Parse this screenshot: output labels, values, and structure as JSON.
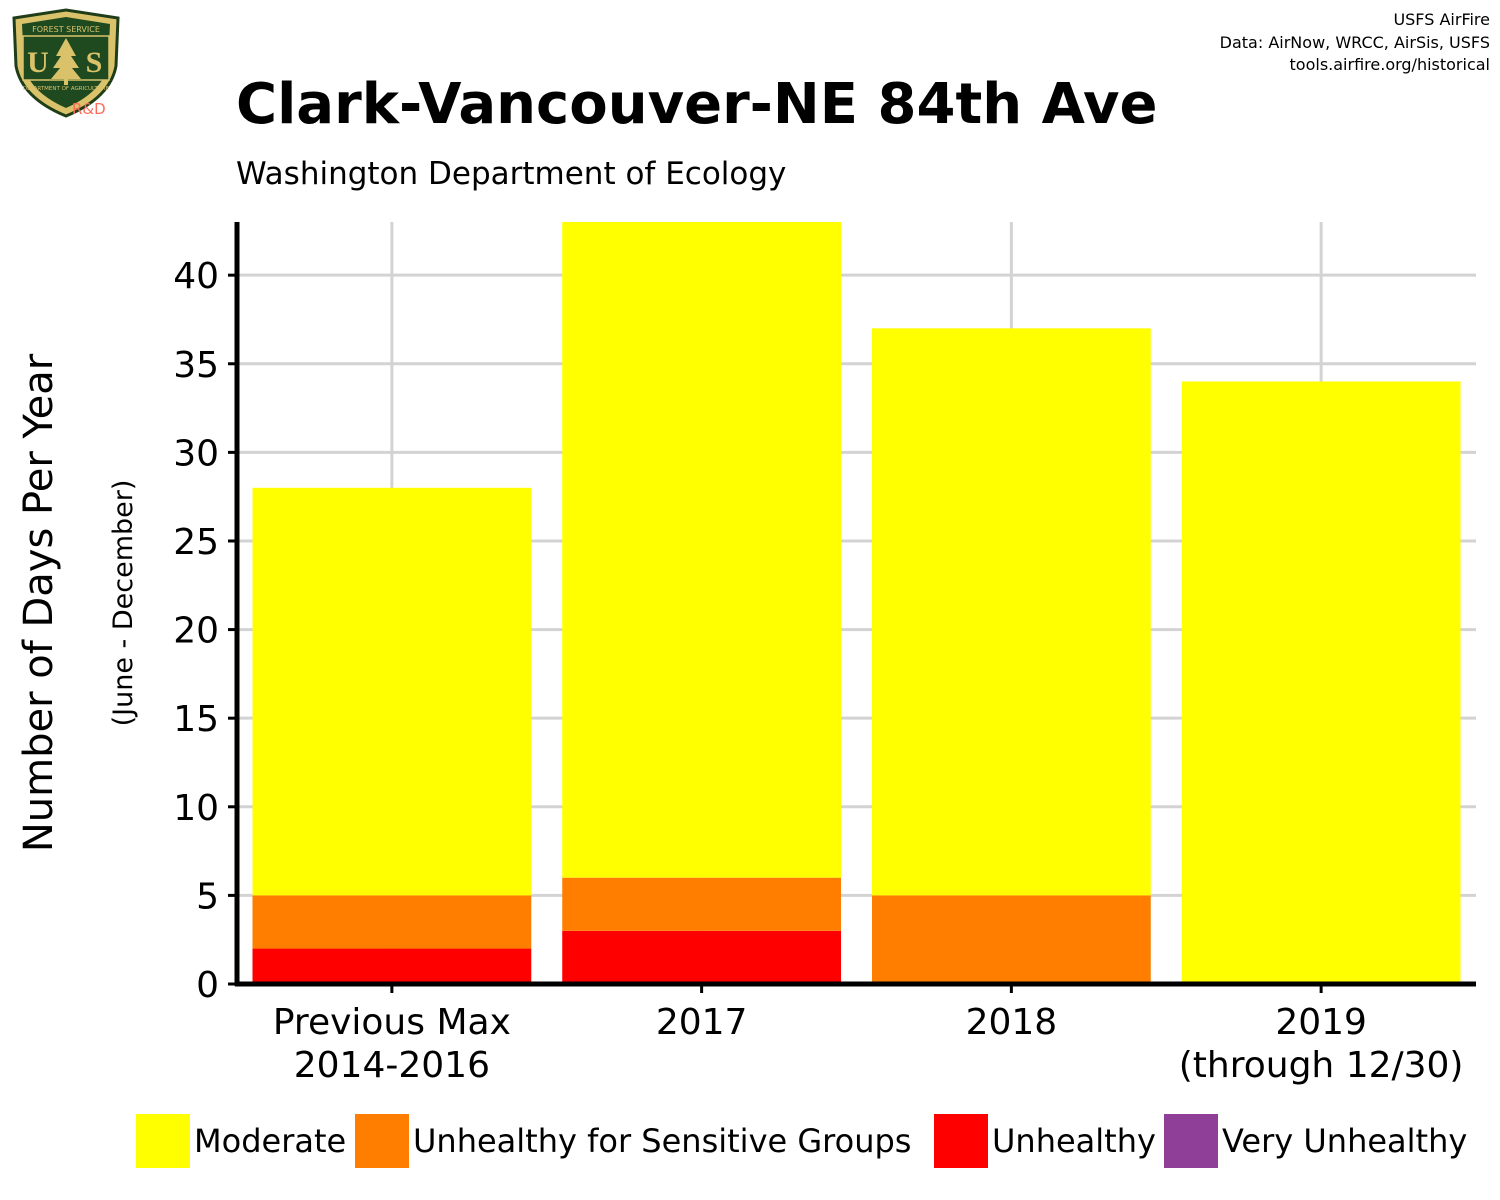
{
  "logo": {
    "top_text": "FOREST SERVICE",
    "letters": "US",
    "bottom_text": "DEPARTMENT OF AGRICULTURE",
    "tag": "R&D"
  },
  "credits": [
    "USFS AirFire",
    "Data: AirNow, WRCC, AirSis, USFS",
    "tools.airfire.org/historical"
  ],
  "colors": {
    "moderate": "#ffff00",
    "usg": "#ff7e00",
    "unhealthy": "#ff0000",
    "very_unhealthy": "#8f3f97",
    "grid": "#d3d3d3"
  },
  "chart_data": {
    "type": "bar",
    "stacked": true,
    "title": "Clark-Vancouver-NE 84th Ave",
    "subtitle": "Washington Department of Ecology",
    "ylabel": "Number of Days Per Year",
    "ylabel_sub": "(June - December)",
    "xlabel": "",
    "ylim": [
      0,
      43
    ],
    "yticks": [
      0,
      5,
      10,
      15,
      20,
      25,
      30,
      35,
      40
    ],
    "grid": true,
    "legend_position": "bottom",
    "categories": [
      [
        "Previous Max",
        "2014-2016"
      ],
      [
        "2017"
      ],
      [
        "2018"
      ],
      [
        "2019",
        "(through 12/30)"
      ]
    ],
    "series": [
      {
        "name": "Unhealthy",
        "color": "#ff0000",
        "values": [
          2,
          3,
          0,
          0
        ]
      },
      {
        "name": "Unhealthy for Sensitive Groups",
        "color": "#ff7e00",
        "values": [
          3,
          3,
          5,
          0
        ]
      },
      {
        "name": "Moderate",
        "color": "#ffff00",
        "values": [
          23,
          37,
          32,
          34
        ]
      }
    ],
    "legend": [
      {
        "name": "Moderate",
        "color": "#ffff00"
      },
      {
        "name": "Unhealthy for Sensitive Groups",
        "color": "#ff7e00"
      },
      {
        "name": "Unhealthy",
        "color": "#ff0000"
      },
      {
        "name": "Very Unhealthy",
        "color": "#8f3f97"
      }
    ]
  }
}
